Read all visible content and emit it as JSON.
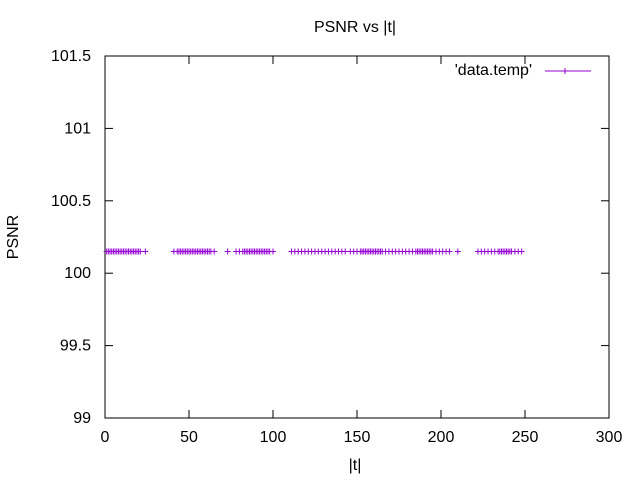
{
  "chart_data": {
    "type": "scatter",
    "title": "PSNR vs |t|",
    "xlabel": "|t|",
    "ylabel": "PSNR",
    "xlim": [
      0,
      300
    ],
    "ylim": [
      99,
      101.5
    ],
    "xticks": [
      0,
      50,
      100,
      150,
      200,
      250,
      300
    ],
    "yticks": [
      99,
      99.5,
      100,
      100.5,
      101,
      101.5
    ],
    "xtick_labels": [
      "0",
      "50",
      "100",
      "150",
      "200",
      "250",
      "300"
    ],
    "ytick_labels": [
      "99",
      "99.5",
      "100",
      "100.5",
      "101",
      "101.5"
    ],
    "grid": false,
    "legend_position": "top-right",
    "marker": "plus",
    "series": [
      {
        "name": "'data.temp'",
        "color": "#9400d3",
        "x": [
          1,
          2,
          3,
          4,
          5,
          6,
          7,
          8,
          9,
          10,
          11,
          12,
          13,
          14,
          15,
          16,
          17,
          18,
          19,
          20,
          21,
          24,
          41,
          43,
          44,
          45,
          46,
          47,
          48,
          49,
          50,
          51,
          52,
          53,
          54,
          55,
          56,
          57,
          58,
          59,
          60,
          61,
          62,
          63,
          65,
          73,
          78,
          80,
          82,
          83,
          84,
          85,
          86,
          87,
          88,
          89,
          90,
          91,
          92,
          93,
          94,
          95,
          96,
          97,
          98,
          100,
          111,
          113,
          115,
          117,
          119,
          121,
          123,
          125,
          127,
          129,
          131,
          133,
          135,
          137,
          139,
          141,
          143,
          146,
          148,
          150,
          152,
          153,
          154,
          155,
          156,
          157,
          158,
          159,
          160,
          161,
          162,
          163,
          164,
          165,
          167,
          169,
          171,
          173,
          175,
          177,
          179,
          181,
          183,
          185,
          186,
          187,
          188,
          189,
          190,
          191,
          192,
          193,
          194,
          195,
          197,
          199,
          201,
          203,
          205,
          210,
          222,
          224,
          226,
          228,
          230,
          232,
          234,
          235,
          236,
          237,
          238,
          239,
          240,
          241,
          242,
          244,
          246,
          248
        ],
        "y_constant": 100.15
      }
    ]
  }
}
